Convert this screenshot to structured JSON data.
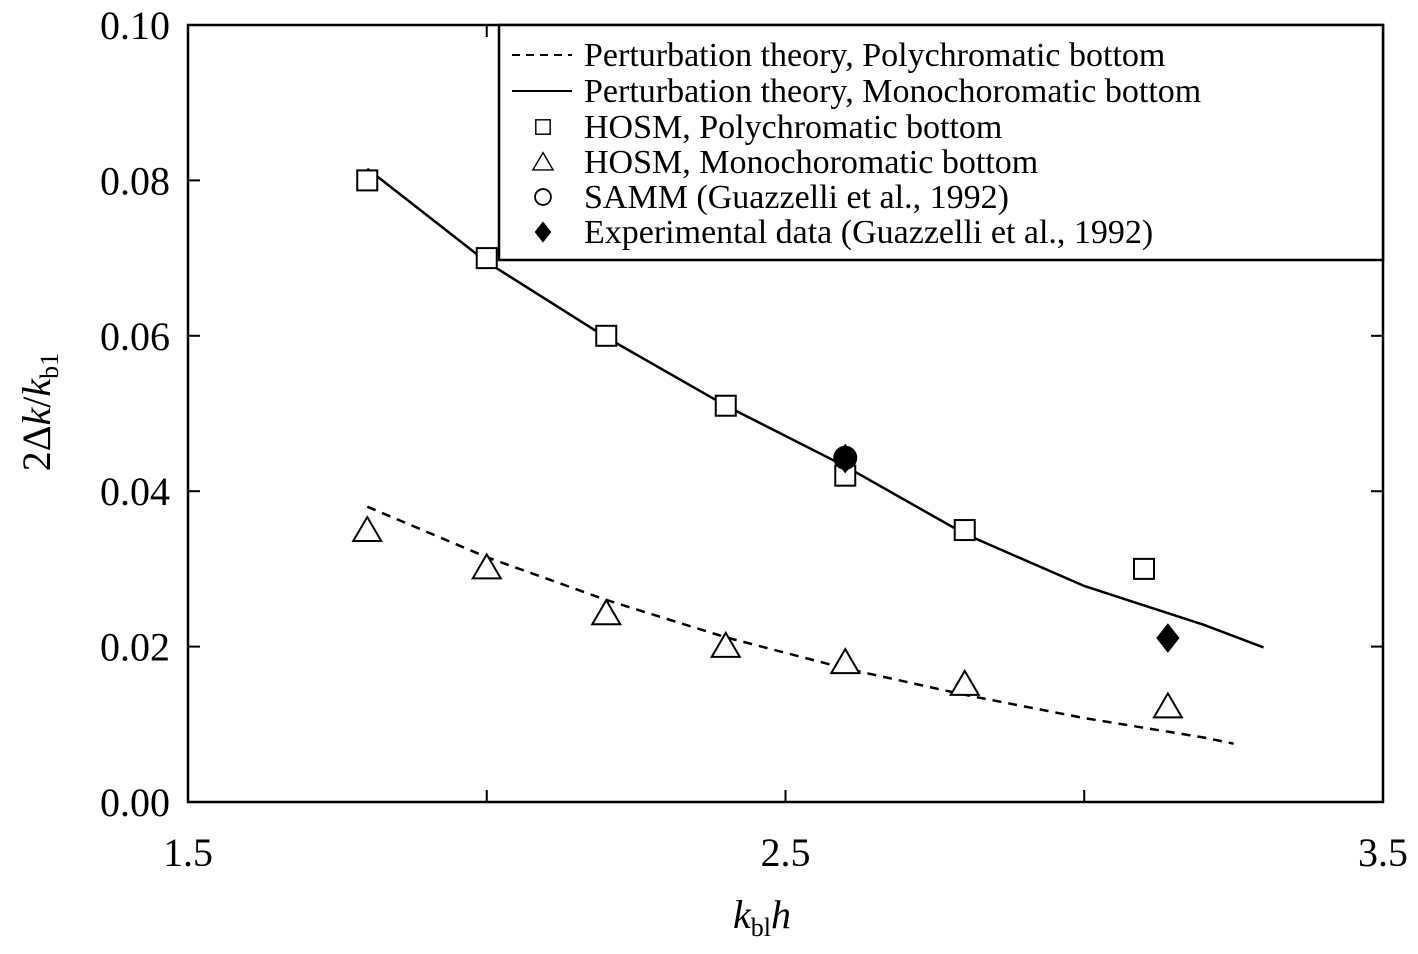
{
  "chart_data": {
    "type": "scatter",
    "xlabel": "k",
    "xlabel_sub": "bl",
    "xlabel_suffix": "h",
    "ylabel_prefix": "2Δ",
    "ylabel_k1": "k",
    "ylabel_k2": "k",
    "ylabel_sub": "b1",
    "ylabel_sep": "/",
    "xlim": [
      1.5,
      3.5
    ],
    "ylim": [
      0.0,
      0.1
    ],
    "x_ticks": [
      {
        "value": 1.5,
        "label": "1.5"
      },
      {
        "value": 2.0,
        "label": ""
      },
      {
        "value": 2.5,
        "label": "2.5"
      },
      {
        "value": 3.0,
        "label": ""
      },
      {
        "value": 3.5,
        "label": "3.5"
      }
    ],
    "y_ticks": [
      {
        "value": 0.0,
        "label": "0.00"
      },
      {
        "value": 0.02,
        "label": "0.02"
      },
      {
        "value": 0.04,
        "label": "0.04"
      },
      {
        "value": 0.06,
        "label": "0.06"
      },
      {
        "value": 0.08,
        "label": "0.08"
      },
      {
        "value": 0.1,
        "label": "0.10"
      }
    ],
    "grid": false,
    "legend_position": "top-right",
    "series": [
      {
        "name": "Perturbation theory, Polychromatic bottom",
        "kind": "dashed-line",
        "x": [
          1.8,
          2.0,
          2.2,
          2.4,
          2.6,
          2.8,
          3.0,
          3.2,
          3.25
        ],
        "y": [
          0.038,
          0.0315,
          0.026,
          0.0212,
          0.0172,
          0.0138,
          0.0108,
          0.0083,
          0.0075
        ]
      },
      {
        "name": "Perturbation theory, Monochoromatic bottom",
        "kind": "solid-line",
        "x": [
          1.8,
          2.0,
          2.2,
          2.4,
          2.6,
          2.8,
          3.0,
          3.2,
          3.3
        ],
        "y": [
          0.0815,
          0.0695,
          0.0598,
          0.051,
          0.0432,
          0.0345,
          0.0278,
          0.0228,
          0.0199
        ]
      },
      {
        "name": "HOSM, Polychromatic bottom",
        "kind": "square",
        "x": [
          1.8,
          2.0,
          2.2,
          2.4,
          2.6,
          2.8,
          3.1
        ],
        "y": [
          0.08,
          0.07,
          0.06,
          0.051,
          0.042,
          0.035,
          0.03
        ]
      },
      {
        "name": "HOSM, Monochoromatic bottom",
        "kind": "triangle",
        "x": [
          1.8,
          2.0,
          2.2,
          2.4,
          2.6,
          2.8,
          3.14
        ],
        "y": [
          0.035,
          0.0302,
          0.0243,
          0.0201,
          0.018,
          0.0152,
          0.0123
        ]
      },
      {
        "name": "SAMM (Guazzelli et al., 1992)",
        "kind": "circle",
        "x": [
          2.6
        ],
        "y": [
          0.0443
        ]
      },
      {
        "name": "Experimental data (Guazzelli et al., 1992)",
        "kind": "diamond",
        "x": [
          2.6,
          3.14
        ],
        "y": [
          0.0442,
          0.0211
        ]
      }
    ]
  }
}
